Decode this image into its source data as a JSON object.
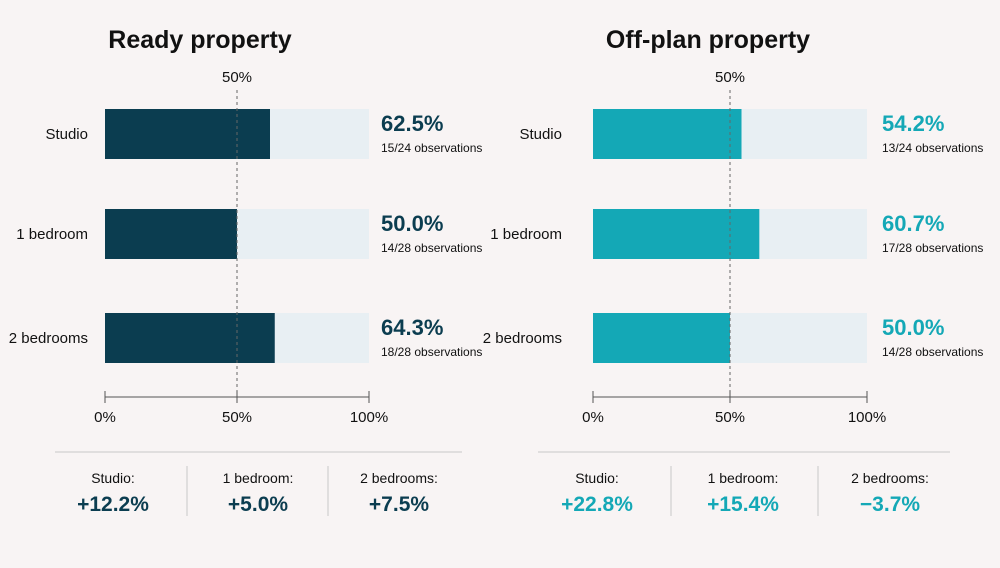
{
  "colors": {
    "ready": "#0b3d50",
    "offplan": "#14a8b6",
    "track": "#e8eff3",
    "axis": "#555555",
    "divider": "#c8c8c8"
  },
  "chart_data": [
    {
      "type": "bar",
      "orientation": "horizontal",
      "stacked_track": true,
      "title": "Ready property",
      "reference_line_label": "50%",
      "reference_value": 50,
      "xlim": [
        0,
        100
      ],
      "x_ticks": [
        "0%",
        "50%",
        "100%"
      ],
      "categories": [
        "Studio",
        "1 bedroom",
        "2 bedrooms"
      ],
      "values": [
        62.5,
        50.0,
        64.3
      ],
      "value_labels": [
        "62.5%",
        "50.0%",
        "64.3%"
      ],
      "observations": [
        "15/24 observations",
        "14/28 observations",
        "18/28 observations"
      ],
      "changes": [
        {
          "label": "Studio:",
          "value": "+12.2%"
        },
        {
          "label": "1 bedroom:",
          "value": "+5.0%"
        },
        {
          "label": "2 bedrooms:",
          "value": "+7.5%"
        }
      ]
    },
    {
      "type": "bar",
      "orientation": "horizontal",
      "stacked_track": true,
      "title": "Off-plan property",
      "reference_line_label": "50%",
      "reference_value": 50,
      "xlim": [
        0,
        100
      ],
      "x_ticks": [
        "0%",
        "50%",
        "100%"
      ],
      "categories": [
        "Studio",
        "1 bedroom",
        "2 bedrooms"
      ],
      "values": [
        54.2,
        60.7,
        50.0
      ],
      "value_labels": [
        "54.2%",
        "60.7%",
        "50.0%"
      ],
      "observations": [
        "13/24 observations",
        "17/28 observations",
        "14/28 observations"
      ],
      "changes": [
        {
          "label": "Studio:",
          "value": "+22.8%"
        },
        {
          "label": "1 bedroom:",
          "value": "+15.4%"
        },
        {
          "label": "2 bedrooms:",
          "value": "−3.7%"
        }
      ]
    }
  ]
}
